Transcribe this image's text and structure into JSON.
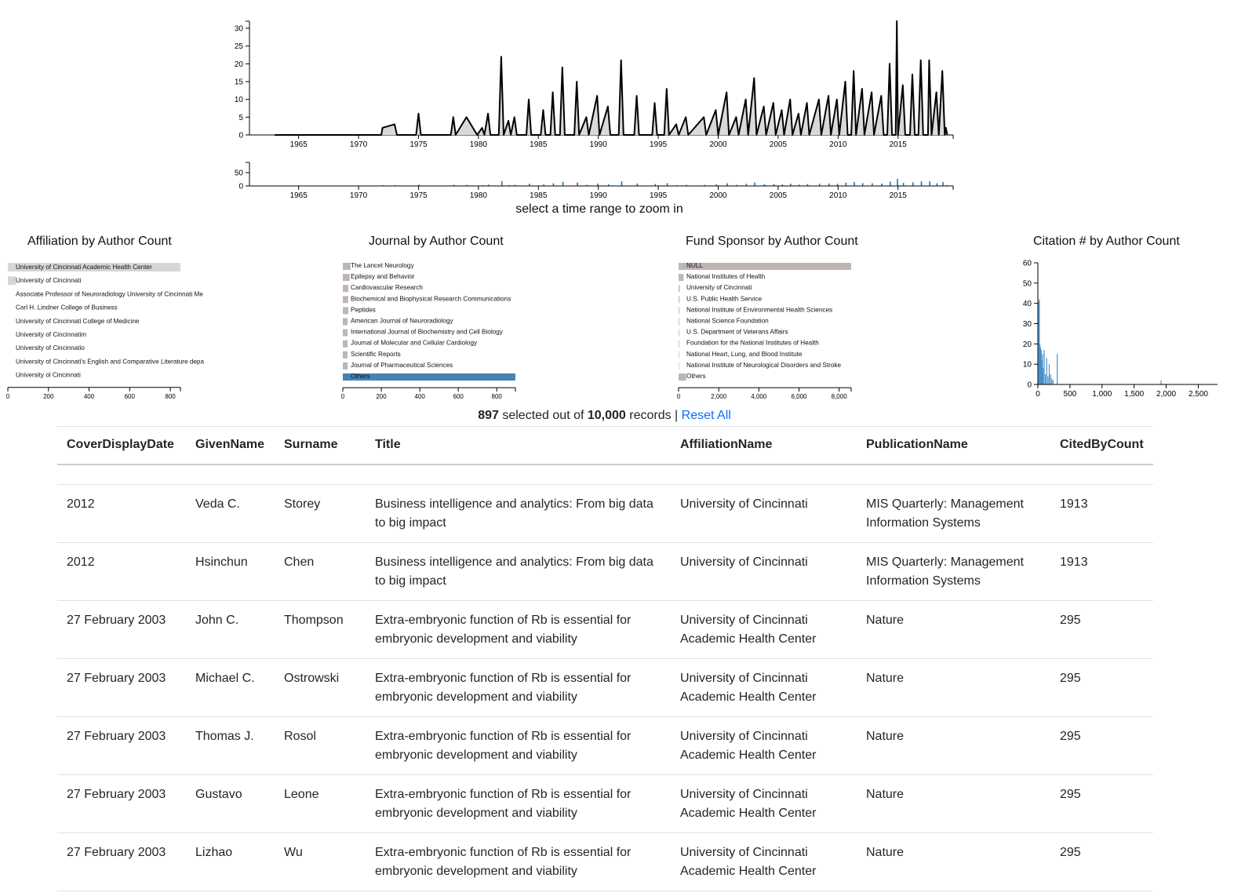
{
  "timeline": {
    "years": [
      "1965",
      "1970",
      "1975",
      "1980",
      "1985",
      "1990",
      "1995",
      "2000",
      "2005",
      "2010",
      "2015"
    ],
    "main_yticks": [
      "0",
      "5",
      "10",
      "15",
      "20",
      "25",
      "30"
    ],
    "range_yticks": [
      "0",
      "50"
    ],
    "caption": "select a time range to zoom in",
    "peaks": [
      [
        1963.0,
        0
      ],
      [
        1971.9,
        0
      ],
      [
        1972.0,
        2
      ],
      [
        1973.0,
        3
      ],
      [
        1973.2,
        0
      ],
      [
        1974.8,
        0
      ],
      [
        1975.0,
        6
      ],
      [
        1975.2,
        0
      ],
      [
        1977.7,
        0
      ],
      [
        1977.9,
        5
      ],
      [
        1978.1,
        0
      ],
      [
        1979.0,
        5
      ],
      [
        1979.9,
        0
      ],
      [
        1980.3,
        2
      ],
      [
        1980.5,
        0
      ],
      [
        1980.8,
        6
      ],
      [
        1981.0,
        0
      ],
      [
        1981.7,
        0
      ],
      [
        1981.9,
        22
      ],
      [
        1982.1,
        0
      ],
      [
        1982.5,
        4
      ],
      [
        1982.7,
        0
      ],
      [
        1983.0,
        5
      ],
      [
        1983.2,
        0
      ],
      [
        1984.0,
        0
      ],
      [
        1984.2,
        10
      ],
      [
        1984.4,
        0
      ],
      [
        1985.2,
        0
      ],
      [
        1985.4,
        7
      ],
      [
        1985.6,
        0
      ],
      [
        1986.0,
        0
      ],
      [
        1986.2,
        12
      ],
      [
        1986.4,
        0
      ],
      [
        1986.8,
        0
      ],
      [
        1987.0,
        19
      ],
      [
        1987.2,
        0
      ],
      [
        1988.0,
        0
      ],
      [
        1988.2,
        15
      ],
      [
        1988.4,
        0
      ],
      [
        1989.0,
        5
      ],
      [
        1989.2,
        0
      ],
      [
        1989.9,
        11
      ],
      [
        1990.1,
        0
      ],
      [
        1990.8,
        8
      ],
      [
        1991.0,
        0
      ],
      [
        1991.7,
        0
      ],
      [
        1991.9,
        21
      ],
      [
        1992.1,
        0
      ],
      [
        1993.0,
        0
      ],
      [
        1993.2,
        11
      ],
      [
        1993.4,
        0
      ],
      [
        1994.5,
        0
      ],
      [
        1994.7,
        9
      ],
      [
        1994.9,
        0
      ],
      [
        1995.5,
        0
      ],
      [
        1995.7,
        13
      ],
      [
        1995.9,
        0
      ],
      [
        1996.5,
        3
      ],
      [
        1996.7,
        0
      ],
      [
        1997.3,
        5
      ],
      [
        1997.5,
        0
      ],
      [
        1998.8,
        5
      ],
      [
        1999.0,
        0
      ],
      [
        1999.8,
        7
      ],
      [
        2000.0,
        0
      ],
      [
        2000.7,
        12
      ],
      [
        2000.9,
        0
      ],
      [
        2001.5,
        5
      ],
      [
        2001.7,
        0
      ],
      [
        2002.3,
        10
      ],
      [
        2002.5,
        0
      ],
      [
        2003.0,
        16
      ],
      [
        2003.2,
        0
      ],
      [
        2003.8,
        8
      ],
      [
        2004.0,
        0
      ],
      [
        2004.6,
        9
      ],
      [
        2004.8,
        0
      ],
      [
        2005.3,
        7
      ],
      [
        2005.5,
        0
      ],
      [
        2006.0,
        10
      ],
      [
        2006.2,
        0
      ],
      [
        2006.7,
        6
      ],
      [
        2006.9,
        0
      ],
      [
        2007.4,
        9
      ],
      [
        2007.6,
        0
      ],
      [
        2008.4,
        10
      ],
      [
        2008.6,
        0
      ],
      [
        2009.2,
        11
      ],
      [
        2009.4,
        0
      ],
      [
        2009.9,
        10
      ],
      [
        2010.1,
        0
      ],
      [
        2010.6,
        15
      ],
      [
        2010.8,
        0
      ],
      [
        2011.1,
        0
      ],
      [
        2011.3,
        18
      ],
      [
        2011.5,
        0
      ],
      [
        2012.0,
        13
      ],
      [
        2012.2,
        0
      ],
      [
        2012.8,
        12
      ],
      [
        2013.0,
        0
      ],
      [
        2013.6,
        11
      ],
      [
        2013.8,
        0
      ],
      [
        2014.1,
        0
      ],
      [
        2014.3,
        20
      ],
      [
        2014.5,
        0
      ],
      [
        2014.8,
        0
      ],
      [
        2014.9,
        32
      ],
      [
        2015.0,
        0
      ],
      [
        2015.4,
        14
      ],
      [
        2015.6,
        0
      ],
      [
        2016.0,
        0
      ],
      [
        2016.2,
        17
      ],
      [
        2016.4,
        0
      ],
      [
        2016.7,
        0
      ],
      [
        2016.9,
        21
      ],
      [
        2017.1,
        0
      ],
      [
        2017.5,
        0
      ],
      [
        2017.6,
        21
      ],
      [
        2017.8,
        0
      ],
      [
        2018.2,
        12
      ],
      [
        2018.4,
        0
      ],
      [
        2018.7,
        18
      ],
      [
        2018.9,
        0
      ],
      [
        2019.0,
        2
      ],
      [
        2019.1,
        0
      ]
    ]
  },
  "charts": {
    "affiliation": {
      "title": "Affiliation by Author Count",
      "labels": [
        "University of Cincinnati Academic Health Center",
        "University of Cincinnati",
        "Associate Professor of Neuroradiology University of Cincinnati Me",
        "Carl H. Lindner College of Business",
        "University of Cincinnati College of Medicine",
        "University of Cincinnatim",
        "University of Cincinnatio",
        "University of Cincinnati's English and Comparative Literature depa",
        "University ol Cincinnati"
      ],
      "values": [
        850,
        40,
        0,
        0,
        0,
        0,
        0,
        0,
        0
      ],
      "ticks": [
        "0",
        "200",
        "400",
        "600",
        "800"
      ],
      "axis_max": 850
    },
    "journal": {
      "title": "Journal by Author Count",
      "labels": [
        "The Lancet Neurology",
        "Epilepsy and Behavior",
        "Cardiovascular Research",
        "Biochemical and Biophysical Research Communications",
        "Peptides",
        "American Journal of Neuroradiology",
        "International Journal of Biochemistry and Cell Biology",
        "Journal of Molecular and Cellular Cardiology",
        "Scientific Reports",
        "Journal of Pharmaceutical Sciences",
        "Others"
      ],
      "values": [
        40,
        35,
        28,
        28,
        28,
        25,
        25,
        25,
        25,
        25,
        897
      ],
      "ticks": [
        "0",
        "200",
        "400",
        "600",
        "800"
      ],
      "axis_max": 897
    },
    "fund": {
      "title": "Fund Sponsor by Author Count",
      "labels": [
        "NULL",
        "National Institutes of Health",
        "University of Cincinnati",
        "U.S. Public Health Service",
        "National Institute of Environmental Health Sciences",
        "National Science Foundation",
        "U.S. Department of Veterans Affairs",
        "Foundation for the National Institutes of Health",
        "National Heart, Lung, and Blood Institute",
        "National Institute of Neurological Disorders and Stroke",
        "Others"
      ],
      "values": [
        8600,
        250,
        60,
        45,
        40,
        35,
        30,
        30,
        25,
        25,
        380
      ],
      "ticks": [
        "0",
        "2,000",
        "4,000",
        "6,000",
        "8,000"
      ],
      "axis_max": 8600
    },
    "citation": {
      "title": "Citation # by Author Count",
      "xticks": [
        "0",
        "500",
        "1,000",
        "1,500",
        "2,000",
        "2,500"
      ],
      "yticks": [
        "0",
        "10",
        "20",
        "30",
        "40",
        "50",
        "60"
      ]
    }
  },
  "chart_data": {
    "type": "bar",
    "title": "Citation # by Author Count",
    "xlim": [
      0,
      2800
    ],
    "ylim": [
      0,
      60
    ],
    "x": [
      5,
      15,
      25,
      35,
      45,
      55,
      65,
      75,
      90,
      110,
      130,
      150,
      170,
      190,
      210,
      230,
      295,
      1913
    ],
    "values": [
      41,
      42,
      20,
      18,
      17,
      12,
      15,
      8,
      17,
      5,
      13,
      4,
      10,
      5,
      3,
      2,
      15,
      2
    ]
  },
  "status": {
    "selected": "897",
    "mid": " selected out of ",
    "total": "10,000",
    "tail": " records | ",
    "reset": "Reset All"
  },
  "table": {
    "headers": [
      "CoverDisplayDate",
      "GivenName",
      "Surname",
      "Title",
      "AffiliationName",
      "PublicationName",
      "CitedByCount"
    ],
    "rows": [
      [
        "2012",
        "Veda C.",
        "Storey",
        "Business intelligence and analytics: From big data to big impact",
        "University of Cincinnati",
        "MIS Quarterly: Management Information Systems",
        "1913"
      ],
      [
        "2012",
        "Hsinchun",
        "Chen",
        "Business intelligence and analytics: From big data to big impact",
        "University of Cincinnati",
        "MIS Quarterly: Management Information Systems",
        "1913"
      ],
      [
        "27 February 2003",
        "John C.",
        "Thompson",
        "Extra-embryonic function of Rb is essential for embryonic development and viability",
        "University of Cincinnati Academic Health Center",
        "Nature",
        "295"
      ],
      [
        "27 February 2003",
        "Michael C.",
        "Ostrowski",
        "Extra-embryonic function of Rb is essential for embryonic development and viability",
        "University of Cincinnati Academic Health Center",
        "Nature",
        "295"
      ],
      [
        "27 February 2003",
        "Thomas J.",
        "Rosol",
        "Extra-embryonic function of Rb is essential for embryonic development and viability",
        "University of Cincinnati Academic Health Center",
        "Nature",
        "295"
      ],
      [
        "27 February 2003",
        "Gustavo",
        "Leone",
        "Extra-embryonic function of Rb is essential for embryonic development and viability",
        "University of Cincinnati Academic Health Center",
        "Nature",
        "295"
      ],
      [
        "27 February 2003",
        "Lizhao",
        "Wu",
        "Extra-embryonic function of Rb is essential for embryonic development and viability",
        "University of Cincinnati Academic Health Center",
        "Nature",
        "295"
      ]
    ]
  }
}
